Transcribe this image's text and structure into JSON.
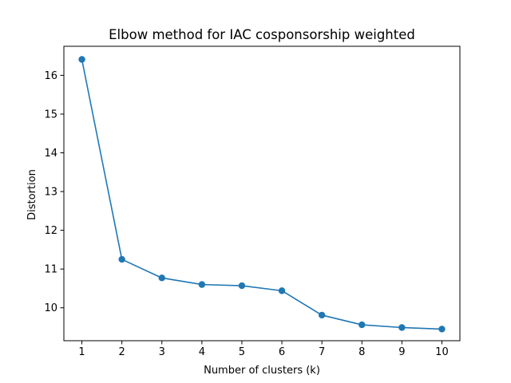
{
  "chart_data": {
    "type": "line",
    "title": "Elbow method for IAC cosponsorship weighted",
    "xlabel": "Number of clusters (k)",
    "ylabel": "Distortion",
    "x": [
      1,
      2,
      3,
      4,
      5,
      6,
      7,
      8,
      9,
      10
    ],
    "series": [
      {
        "values": [
          16.41,
          11.25,
          10.77,
          10.6,
          10.57,
          10.44,
          9.81,
          9.56,
          9.49,
          9.45
        ],
        "color": "#1f77b4",
        "marker": "circle"
      }
    ],
    "xticks": [
      "1",
      "2",
      "3",
      "4",
      "5",
      "6",
      "7",
      "8",
      "9",
      "10"
    ],
    "yticks": [
      "10",
      "11",
      "12",
      "13",
      "14",
      "15",
      "16"
    ],
    "xlim": [
      0.55,
      10.45
    ],
    "ylim": [
      9.15,
      16.75
    ],
    "grid": false,
    "legend": "none"
  }
}
